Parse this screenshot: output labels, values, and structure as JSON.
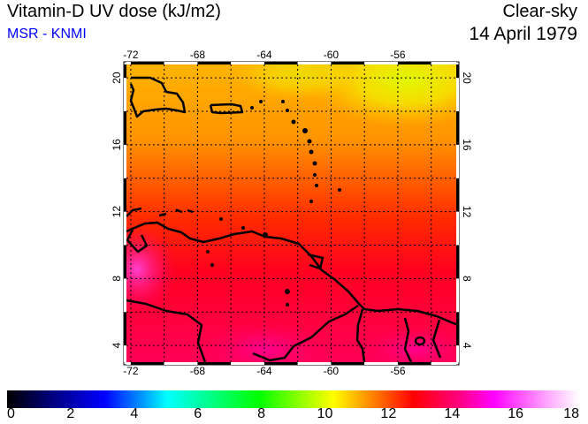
{
  "header": {
    "title": "Vitamin-D UV dose (kJ/m2)",
    "source": "MSR - KNMI",
    "condition": "Clear-sky",
    "date": "14 April 1979"
  },
  "map": {
    "lon_ticks": [
      "-72",
      "-68",
      "-64",
      "-60",
      "-56"
    ],
    "lat_ticks": [
      "20",
      "16",
      "12",
      "8",
      "4"
    ],
    "lon_range": [
      -72.26,
      -52.5
    ],
    "lat_range": [
      3.0,
      20.8
    ]
  },
  "colorbar": {
    "labels": [
      "0",
      "2",
      "4",
      "6",
      "8",
      "10",
      "12",
      "14",
      "16",
      "18"
    ],
    "min": 0,
    "max": 18
  }
}
